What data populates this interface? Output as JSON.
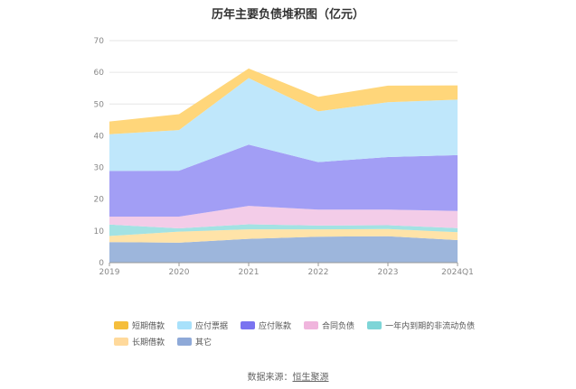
{
  "title": "历年主要负债堆积图（亿元）",
  "source": {
    "prefix": "数据来源：",
    "name": "恒生聚源"
  },
  "chart_data": {
    "type": "area",
    "stacked": true,
    "title": "历年主要负债堆积图（亿元）",
    "x": [
      "2019",
      "2020",
      "2021",
      "2022",
      "2023",
      "2024Q1"
    ],
    "ylim": [
      0,
      70
    ],
    "yticks": [
      0,
      10,
      20,
      30,
      40,
      50,
      60,
      70
    ],
    "grid": true,
    "series": [
      {
        "name": "其它",
        "color": "#9db6dc",
        "values": [
          6.5,
          6.3,
          7.5,
          8.2,
          8.3,
          7.1
        ]
      },
      {
        "name": "长期借款",
        "color": "#ffe3a8",
        "values": [
          1.9,
          3.5,
          3.0,
          2.3,
          2.3,
          2.5
        ]
      },
      {
        "name": "一年内到期的非流动负债",
        "color": "#a3e2e3",
        "values": [
          3.6,
          1.0,
          1.6,
          1.2,
          1.2,
          1.3
        ]
      },
      {
        "name": "合同负债",
        "color": "#f3cce8",
        "values": [
          2.5,
          3.7,
          5.8,
          5.0,
          4.9,
          5.4
        ]
      },
      {
        "name": "应付账款",
        "color": "#a29ef5",
        "values": [
          14.4,
          14.5,
          19.3,
          15.0,
          16.6,
          17.6
        ]
      },
      {
        "name": "应付票据",
        "color": "#bfe7fb",
        "values": [
          11.6,
          12.8,
          21.0,
          16.0,
          17.3,
          17.5
        ]
      },
      {
        "name": "短期借款",
        "color": "#ffd67a",
        "values": [
          4.0,
          5.0,
          3.0,
          4.6,
          5.2,
          4.5
        ]
      }
    ],
    "legend": {
      "position": "bottom",
      "order": [
        "短期借款",
        "应付票据",
        "应付账款",
        "合同负债",
        "一年内到期的非流动负债",
        "长期借款",
        "其它"
      ],
      "colors": [
        "#f5be3c",
        "#a8e1fb",
        "#7a73f0",
        "#f0b5dd",
        "#7ed5d7",
        "#ffd99b",
        "#8ea9d8"
      ]
    }
  }
}
